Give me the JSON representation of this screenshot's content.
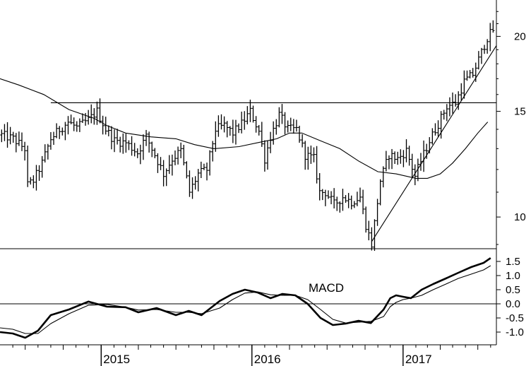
{
  "chart_data": [
    {
      "type": "bar",
      "subtype": "ohlc-weekly",
      "panel": "price",
      "scale": "log",
      "title": "",
      "xlabel": "",
      "ylabel": "",
      "x_range": [
        "2014-05-01",
        "2017-08-15"
      ],
      "ylim": [
        9.0,
        22.5
      ],
      "y_ticks": [
        10,
        15,
        20
      ],
      "y_tick_labels": [
        "10",
        "15",
        "20"
      ],
      "x_tick_labels": [
        "2015",
        "2016",
        "2017"
      ],
      "x_tick_dates": [
        "2015-01-01",
        "2016-01-01",
        "2017-01-01"
      ],
      "grid": false,
      "legend": "none",
      "colors": {
        "bars": "#000000",
        "lines": "#000000",
        "background": "#ffffff"
      },
      "anchors": [
        [
          "2014-05-05",
          13.7
        ],
        [
          "2014-06-02",
          13.5
        ],
        [
          "2014-06-30",
          13.0
        ],
        [
          "2014-07-07",
          11.3
        ],
        [
          "2014-07-21",
          11.5
        ],
        [
          "2014-08-11",
          12.3
        ],
        [
          "2014-09-01",
          13.5
        ],
        [
          "2014-09-22",
          14.0
        ],
        [
          "2014-10-13",
          14.4
        ],
        [
          "2014-11-03",
          14.1
        ],
        [
          "2014-12-01",
          14.5
        ],
        [
          "2014-12-22",
          15.0
        ],
        [
          "2015-01-12",
          14.0
        ],
        [
          "2015-02-02",
          13.4
        ],
        [
          "2015-03-02",
          13.3
        ],
        [
          "2015-03-30",
          12.8
        ],
        [
          "2015-04-20",
          13.6
        ],
        [
          "2015-05-11",
          12.7
        ],
        [
          "2015-06-01",
          11.8
        ],
        [
          "2015-06-22",
          12.5
        ],
        [
          "2015-07-13",
          12.9
        ],
        [
          "2015-08-03",
          11.0
        ],
        [
          "2015-08-24",
          11.8
        ],
        [
          "2015-09-14",
          12.0
        ],
        [
          "2015-10-05",
          14.0
        ],
        [
          "2015-10-26",
          14.2
        ],
        [
          "2015-11-16",
          13.8
        ],
        [
          "2015-12-07",
          14.3
        ],
        [
          "2015-12-28",
          15.0
        ],
        [
          "2016-01-18",
          13.9
        ],
        [
          "2016-02-01",
          12.5
        ],
        [
          "2016-02-15",
          13.6
        ],
        [
          "2016-03-07",
          14.8
        ],
        [
          "2016-03-28",
          14.0
        ],
        [
          "2016-04-18",
          14.0
        ],
        [
          "2016-05-09",
          12.7
        ],
        [
          "2016-05-30",
          12.5
        ],
        [
          "2016-06-13",
          11.0
        ],
        [
          "2016-06-27",
          11.0
        ],
        [
          "2016-07-18",
          10.5
        ],
        [
          "2016-08-08",
          10.8
        ],
        [
          "2016-08-29",
          10.6
        ],
        [
          "2016-09-19",
          10.8
        ],
        [
          "2016-10-03",
          9.7
        ],
        [
          "2016-10-17",
          9.0
        ],
        [
          "2016-11-07",
          11.5
        ],
        [
          "2016-11-28",
          12.7
        ],
        [
          "2016-12-19",
          12.5
        ],
        [
          "2017-01-09",
          12.9
        ],
        [
          "2017-01-30",
          11.7
        ],
        [
          "2017-02-13",
          12.4
        ],
        [
          "2017-03-06",
          13.4
        ],
        [
          "2017-03-27",
          14.3
        ],
        [
          "2017-04-17",
          15.3
        ],
        [
          "2017-05-08",
          15.5
        ],
        [
          "2017-05-29",
          16.8
        ],
        [
          "2017-06-19",
          17.3
        ],
        [
          "2017-07-10",
          18.8
        ],
        [
          "2017-07-24",
          19.9
        ],
        [
          "2017-08-07",
          20.5
        ]
      ],
      "moving_averages": [
        {
          "name": "",
          "points": [
            [
              "2014-05-01",
              17.0
            ],
            [
              "2014-06-15",
              16.6
            ],
            [
              "2014-08-15",
              16.0
            ],
            [
              "2014-10-15",
              15.1
            ],
            [
              "2014-12-15",
              14.6
            ],
            [
              "2015-01-15",
              14.2
            ],
            [
              "2015-03-01",
              13.8
            ],
            [
              "2015-05-01",
              13.6
            ],
            [
              "2015-07-01",
              13.5
            ],
            [
              "2015-08-15",
              13.2
            ],
            [
              "2015-10-01",
              13.0
            ],
            [
              "2015-12-01",
              13.1
            ],
            [
              "2016-01-15",
              13.3
            ],
            [
              "2016-03-01",
              13.5
            ],
            [
              "2016-04-01",
              13.8
            ],
            [
              "2016-05-01",
              13.8
            ],
            [
              "2016-06-15",
              13.4
            ],
            [
              "2016-08-01",
              13.0
            ],
            [
              "2016-09-15",
              12.4
            ],
            [
              "2016-11-01",
              11.9
            ],
            [
              "2016-12-15",
              11.8
            ],
            [
              "2017-02-01",
              11.6
            ],
            [
              "2017-03-01",
              11.6
            ],
            [
              "2017-04-01",
              11.8
            ],
            [
              "2017-05-01",
              12.3
            ],
            [
              "2017-06-01",
              13.0
            ],
            [
              "2017-07-01",
              13.8
            ],
            [
              "2017-07-25",
              14.4
            ]
          ]
        }
      ],
      "lines": [
        {
          "name": "",
          "from": [
            "2014-09-01",
            15.5
          ],
          "to": [
            "2017-08-15",
            15.5
          ]
        },
        {
          "name": "",
          "from": [
            "2016-10-17",
            9.1
          ],
          "to": [
            "2017-08-15",
            19.3
          ]
        }
      ]
    },
    {
      "type": "line",
      "panel": "indicator",
      "title": "MACD",
      "xlabel": "",
      "ylabel": "",
      "ylim": [
        -1.4,
        1.85
      ],
      "y_ticks": [
        -1.0,
        -0.5,
        0.0,
        0.5,
        1.0,
        1.5
      ],
      "y_tick_labels": [
        "-1.0",
        "-0.5",
        "0.0",
        "0.5",
        "1.0",
        "1.5"
      ],
      "zero_line": 0.0,
      "grid": false,
      "legend": "none",
      "series": [
        {
          "name": "",
          "style": "bold",
          "points": [
            [
              "2014-05-01",
              -1.0
            ],
            [
              "2014-06-01",
              -1.05
            ],
            [
              "2014-07-01",
              -1.2
            ],
            [
              "2014-08-01",
              -0.95
            ],
            [
              "2014-09-01",
              -0.4
            ],
            [
              "2014-10-15",
              -0.2
            ],
            [
              "2014-12-01",
              0.08
            ],
            [
              "2015-01-15",
              -0.1
            ],
            [
              "2015-03-01",
              -0.12
            ],
            [
              "2015-04-01",
              -0.3
            ],
            [
              "2015-05-15",
              -0.15
            ],
            [
              "2015-07-01",
              -0.4
            ],
            [
              "2015-08-01",
              -0.25
            ],
            [
              "2015-09-01",
              -0.4
            ],
            [
              "2015-10-15",
              0.1
            ],
            [
              "2015-11-15",
              0.35
            ],
            [
              "2015-12-15",
              0.5
            ],
            [
              "2016-01-15",
              0.4
            ],
            [
              "2016-02-15",
              0.2
            ],
            [
              "2016-03-15",
              0.35
            ],
            [
              "2016-04-15",
              0.3
            ],
            [
              "2016-05-15",
              0.0
            ],
            [
              "2016-06-15",
              -0.5
            ],
            [
              "2016-07-15",
              -0.75
            ],
            [
              "2016-08-15",
              -0.7
            ],
            [
              "2016-09-15",
              -0.6
            ],
            [
              "2016-10-15",
              -0.68
            ],
            [
              "2016-11-15",
              -0.2
            ],
            [
              "2016-12-01",
              0.2
            ],
            [
              "2016-12-15",
              0.3
            ],
            [
              "2017-01-01",
              0.25
            ],
            [
              "2017-01-20",
              0.2
            ],
            [
              "2017-02-15",
              0.5
            ],
            [
              "2017-03-15",
              0.7
            ],
            [
              "2017-04-15",
              0.9
            ],
            [
              "2017-05-15",
              1.1
            ],
            [
              "2017-06-15",
              1.3
            ],
            [
              "2017-07-15",
              1.45
            ],
            [
              "2017-08-01",
              1.62
            ]
          ]
        },
        {
          "name": "",
          "style": "thin",
          "points": [
            [
              "2014-05-01",
              -0.85
            ],
            [
              "2014-06-01",
              -0.9
            ],
            [
              "2014-07-01",
              -1.05
            ],
            [
              "2014-08-01",
              -1.05
            ],
            [
              "2014-09-01",
              -0.7
            ],
            [
              "2014-10-15",
              -0.35
            ],
            [
              "2014-12-01",
              -0.05
            ],
            [
              "2015-01-15",
              -0.02
            ],
            [
              "2015-03-01",
              -0.12
            ],
            [
              "2015-04-01",
              -0.22
            ],
            [
              "2015-05-15",
              -0.2
            ],
            [
              "2015-07-01",
              -0.3
            ],
            [
              "2015-08-01",
              -0.3
            ],
            [
              "2015-09-01",
              -0.35
            ],
            [
              "2015-10-15",
              -0.15
            ],
            [
              "2015-11-15",
              0.15
            ],
            [
              "2015-12-15",
              0.38
            ],
            [
              "2016-01-15",
              0.42
            ],
            [
              "2016-02-15",
              0.32
            ],
            [
              "2016-03-15",
              0.3
            ],
            [
              "2016-04-15",
              0.3
            ],
            [
              "2016-05-15",
              0.15
            ],
            [
              "2016-06-15",
              -0.2
            ],
            [
              "2016-07-15",
              -0.55
            ],
            [
              "2016-08-15",
              -0.68
            ],
            [
              "2016-09-15",
              -0.65
            ],
            [
              "2016-10-15",
              -0.62
            ],
            [
              "2016-11-15",
              -0.45
            ],
            [
              "2016-12-01",
              -0.1
            ],
            [
              "2016-12-15",
              0.05
            ],
            [
              "2017-01-01",
              0.15
            ],
            [
              "2017-01-20",
              0.2
            ],
            [
              "2017-02-15",
              0.3
            ],
            [
              "2017-03-15",
              0.5
            ],
            [
              "2017-04-15",
              0.7
            ],
            [
              "2017-05-15",
              0.9
            ],
            [
              "2017-06-15",
              1.05
            ],
            [
              "2017-07-15",
              1.2
            ],
            [
              "2017-08-01",
              1.35
            ]
          ]
        }
      ]
    }
  ]
}
